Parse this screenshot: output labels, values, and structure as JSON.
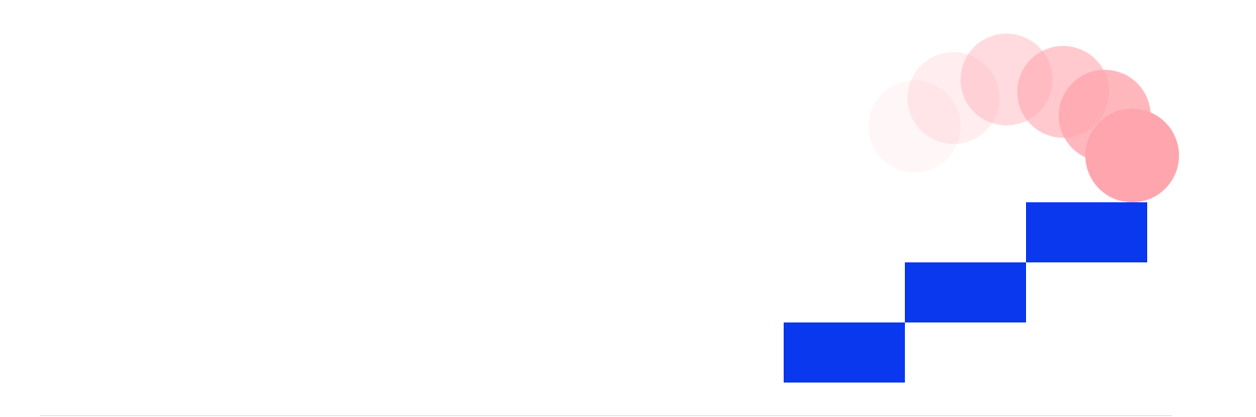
{
  "illustration": {
    "step_color": "#0a38ef",
    "ball_color": "#ffa5ae",
    "ball_trail_opacities": [
      0.1,
      0.2,
      0.4,
      0.6,
      0.8,
      1.0
    ]
  },
  "divider": {
    "color": "#e3e3e3"
  }
}
